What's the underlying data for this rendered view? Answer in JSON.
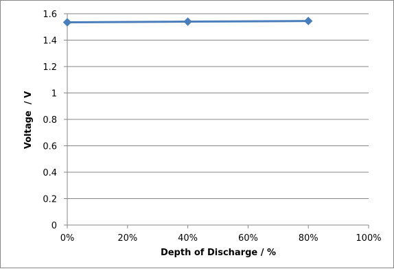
{
  "chart_data": {
    "type": "line",
    "title": "",
    "xlabel": "Depth of Discharge / %",
    "ylabel": "Voltage  / V",
    "x": [
      0,
      40,
      80
    ],
    "x_ticks": [
      "0%",
      "20%",
      "40%",
      "60%",
      "80%",
      "100%"
    ],
    "xlim": [
      0,
      100
    ],
    "y_ticks": [
      "0",
      "0.2",
      "0.4",
      "0.6",
      "0.8",
      "1",
      "1.2",
      "1.4",
      "1.6"
    ],
    "ylim": [
      0,
      1.6
    ],
    "grid": "horizontal major gridlines",
    "legend": "none",
    "series": [
      {
        "values": [
          1.535,
          1.54,
          1.545
        ],
        "color": "#4a7ebb",
        "marker": "diamond"
      }
    ]
  }
}
